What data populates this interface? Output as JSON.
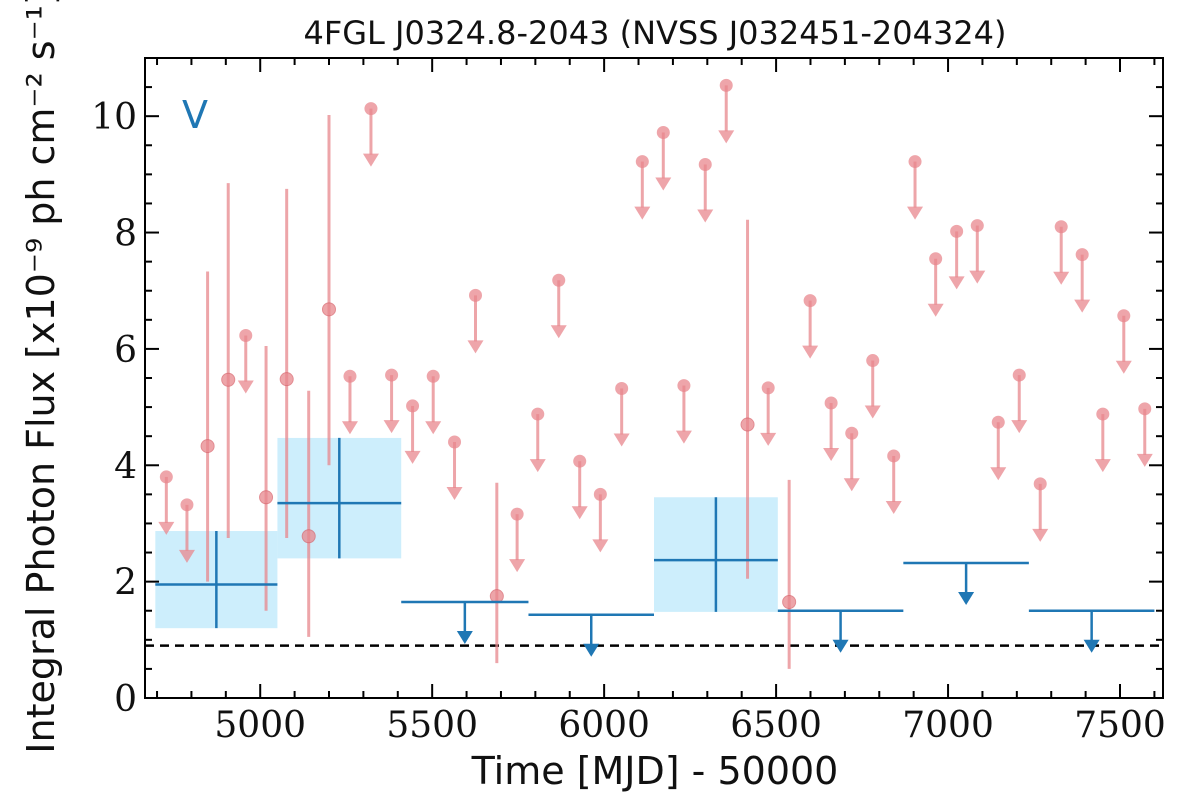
{
  "chart_data": {
    "type": "scatter",
    "title": "4FGL J0324.8-2043 (NVSS J032451-204324)",
    "xlabel": "Time [MJD] - 50000",
    "ylabel": "Integral Photon Flux [x10⁻⁹ ph cm⁻² s⁻¹]",
    "band_label": "V",
    "xlim": [
      4665,
      7625
    ],
    "ylim": [
      0,
      11
    ],
    "xticks": [
      5000,
      5500,
      6000,
      6500,
      7000,
      7500
    ],
    "yticks": [
      0,
      2,
      4,
      6,
      8,
      10
    ],
    "reference_level": 0.9,
    "colors": {
      "points": "#e8878d",
      "bins": "#1f77b4",
      "bin_fill": "#cdeefc",
      "reference": "#000000"
    },
    "series": [
      {
        "name": "",
        "kind": "detections",
        "points": [
          {
            "x": 4847,
            "y": 4.33,
            "ylo": 2.0,
            "yhi": 7.33
          },
          {
            "x": 4907,
            "y": 5.47,
            "ylo": 2.75,
            "yhi": 8.85
          },
          {
            "x": 5017,
            "y": 3.45,
            "ylo": 1.5,
            "yhi": 6.05
          },
          {
            "x": 5077,
            "y": 5.48,
            "ylo": 2.75,
            "yhi": 8.75
          },
          {
            "x": 5141,
            "y": 2.78,
            "ylo": 1.05,
            "yhi": 5.28
          },
          {
            "x": 5200,
            "y": 6.68,
            "ylo": 4.0,
            "yhi": 10.02
          },
          {
            "x": 5688,
            "y": 1.75,
            "ylo": 0.6,
            "yhi": 3.7
          },
          {
            "x": 6417,
            "y": 4.7,
            "ylo": 2.05,
            "yhi": 8.22
          },
          {
            "x": 6538,
            "y": 1.65,
            "ylo": 0.5,
            "yhi": 3.75
          }
        ]
      },
      {
        "name": "",
        "kind": "upper_limits",
        "points": [
          {
            "x": 4727,
            "y": 3.8
          },
          {
            "x": 4787,
            "y": 3.32
          },
          {
            "x": 4958,
            "y": 6.23
          },
          {
            "x": 5322,
            "y": 10.13
          },
          {
            "x": 5261,
            "y": 5.53
          },
          {
            "x": 5382,
            "y": 5.55
          },
          {
            "x": 5443,
            "y": 5.02
          },
          {
            "x": 5503,
            "y": 5.53
          },
          {
            "x": 5565,
            "y": 4.4
          },
          {
            "x": 5626,
            "y": 6.92
          },
          {
            "x": 5747,
            "y": 3.16
          },
          {
            "x": 5807,
            "y": 4.88
          },
          {
            "x": 5868,
            "y": 7.18
          },
          {
            "x": 5929,
            "y": 4.07
          },
          {
            "x": 5989,
            "y": 3.5
          },
          {
            "x": 6051,
            "y": 5.32
          },
          {
            "x": 6111,
            "y": 9.22
          },
          {
            "x": 6172,
            "y": 9.72
          },
          {
            "x": 6232,
            "y": 5.37
          },
          {
            "x": 6294,
            "y": 9.17
          },
          {
            "x": 6355,
            "y": 10.53
          },
          {
            "x": 6477,
            "y": 5.33
          },
          {
            "x": 6599,
            "y": 6.83
          },
          {
            "x": 6660,
            "y": 5.07
          },
          {
            "x": 6720,
            "y": 4.55
          },
          {
            "x": 6781,
            "y": 5.8
          },
          {
            "x": 6842,
            "y": 4.16
          },
          {
            "x": 6904,
            "y": 9.22
          },
          {
            "x": 6964,
            "y": 7.55
          },
          {
            "x": 7025,
            "y": 8.02
          },
          {
            "x": 7085,
            "y": 8.12
          },
          {
            "x": 7146,
            "y": 4.74
          },
          {
            "x": 7207,
            "y": 5.55
          },
          {
            "x": 7268,
            "y": 3.68
          },
          {
            "x": 7329,
            "y": 8.1
          },
          {
            "x": 7390,
            "y": 7.62
          },
          {
            "x": 7450,
            "y": 4.88
          },
          {
            "x": 7511,
            "y": 6.57
          },
          {
            "x": 7572,
            "y": 4.97
          }
        ]
      },
      {
        "name": "",
        "kind": "binned",
        "bins": [
          {
            "x0": 4695,
            "x1": 5050,
            "y": 1.95,
            "ylo": 1.2,
            "yhi": 2.87,
            "type": "detection"
          },
          {
            "x0": 5050,
            "x1": 5410,
            "y": 3.35,
            "ylo": 2.4,
            "yhi": 4.47,
            "type": "detection"
          },
          {
            "x0": 5410,
            "x1": 5780,
            "y": 1.65,
            "type": "upper_limit"
          },
          {
            "x0": 5780,
            "x1": 6145,
            "y": 1.43,
            "type": "upper_limit"
          },
          {
            "x0": 6145,
            "x1": 6505,
            "y": 2.37,
            "ylo": 1.48,
            "yhi": 3.45,
            "type": "detection"
          },
          {
            "x0": 6505,
            "x1": 6870,
            "y": 1.5,
            "type": "upper_limit"
          },
          {
            "x0": 6870,
            "x1": 7235,
            "y": 2.32,
            "type": "upper_limit"
          },
          {
            "x0": 7235,
            "x1": 7600,
            "y": 1.5,
            "type": "upper_limit"
          }
        ]
      }
    ]
  }
}
